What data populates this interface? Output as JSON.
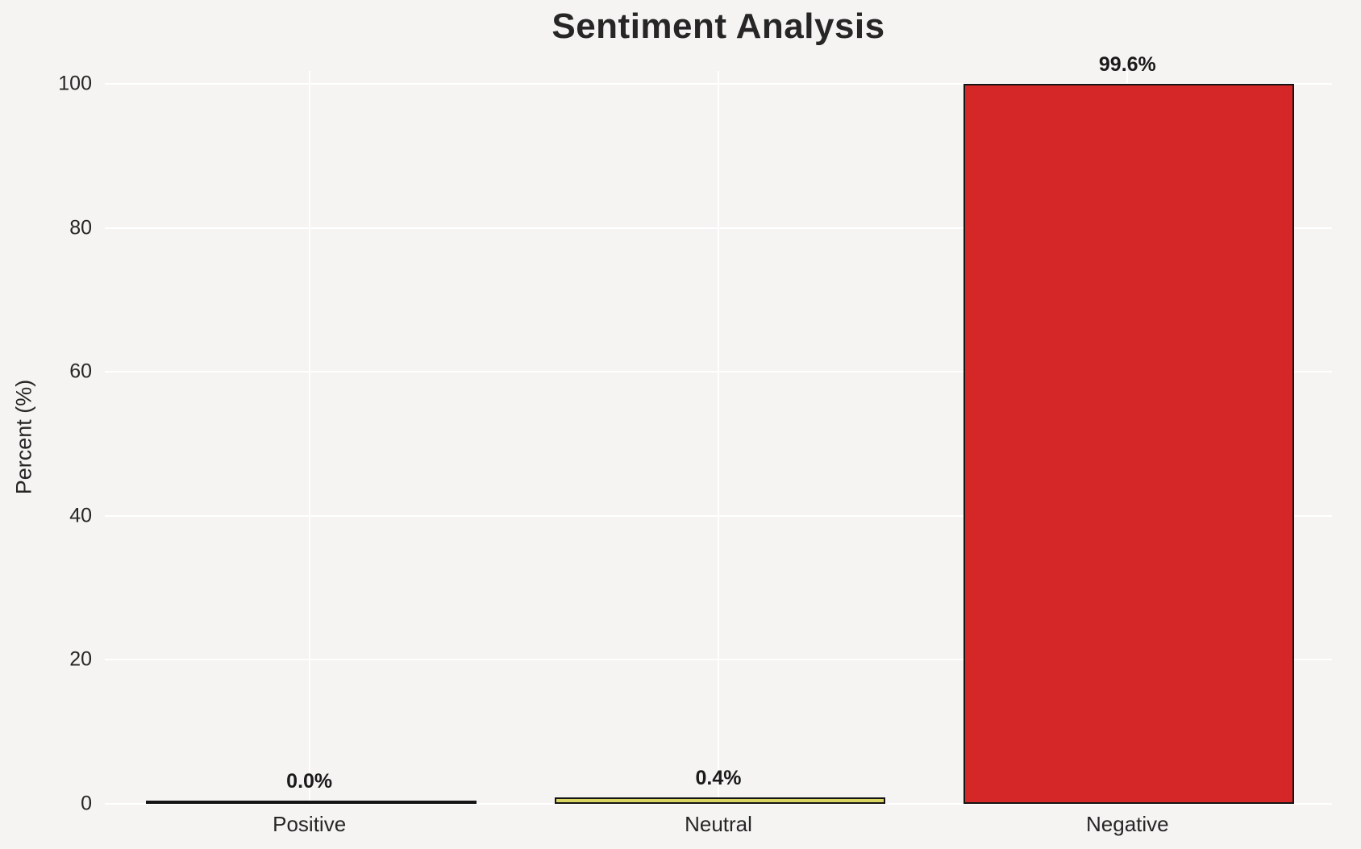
{
  "chart_data": {
    "type": "bar",
    "title": "Sentiment Analysis",
    "xlabel": "",
    "ylabel": "Percent (%)",
    "categories": [
      "Positive",
      "Neutral",
      "Negative"
    ],
    "values": [
      0.0,
      0.4,
      99.6
    ],
    "bar_labels": [
      "0.0%",
      "0.4%",
      "99.6%"
    ],
    "bar_colors": [
      "none",
      "#d8d563",
      "#d62728"
    ],
    "bar_edge_color": "#141414",
    "bar_width_fraction": 0.8,
    "yticks": [
      0,
      20,
      40,
      60,
      80,
      100
    ],
    "ylim": [
      0,
      101.8
    ],
    "grid": true,
    "vertical_grid": true,
    "legend": "none"
  },
  "colors": {
    "background": "#f5f4f2",
    "gridline": "#ffffff",
    "text": "#262626",
    "value_label_text": "#1a1a1a"
  }
}
